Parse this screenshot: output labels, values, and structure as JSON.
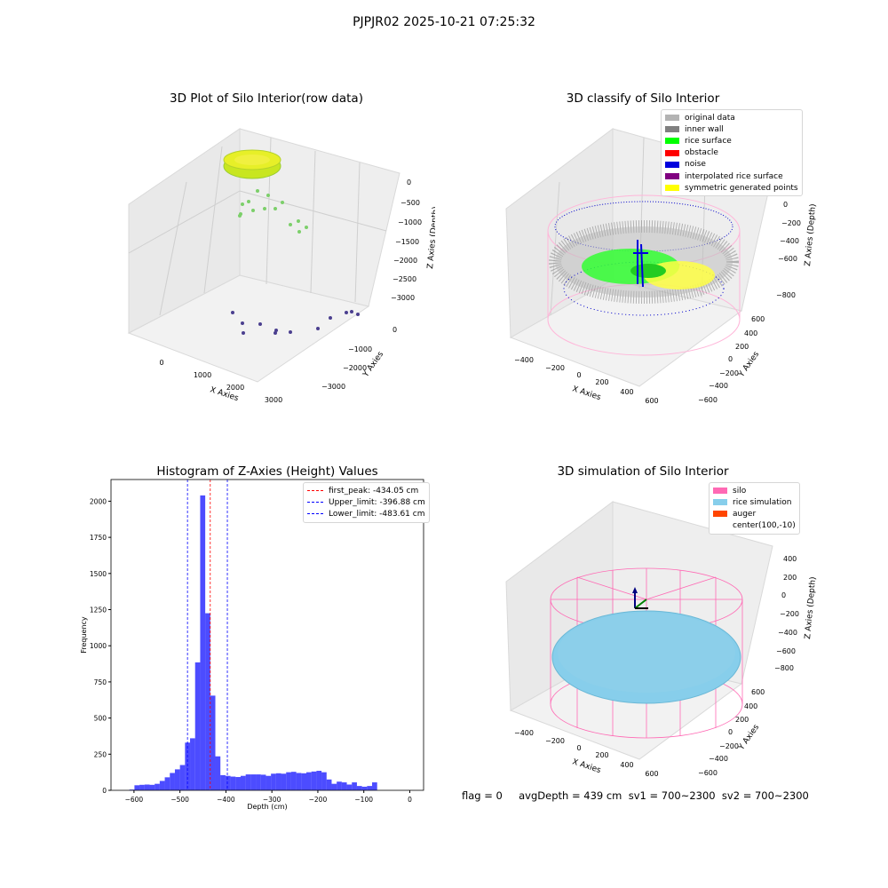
{
  "suptitle": "PJPJR02 2025-10-21 07:25:32",
  "panels": {
    "raw": {
      "title": "3D Plot of Silo Interior(row data)",
      "xlabel": "X Axies",
      "ylabel": "Y Axies",
      "zlabel": "Z Axies (Depth)",
      "xticks": [
        "0",
        "1000",
        "2000",
        "3000"
      ],
      "yticks": [
        "0",
        "−1000",
        "−2000",
        "−3000"
      ],
      "zticks": [
        "0",
        "−500",
        "−1000",
        "−1500",
        "−2000",
        "−2500",
        "−3000"
      ]
    },
    "classify": {
      "title": "3D classify of Silo Interior",
      "xlabel": "X Axies",
      "ylabel": "Y Axies",
      "zlabel": "Z Axies (Depth)",
      "xticks": [
        "−400",
        "−200",
        "0",
        "200",
        "400",
        "600"
      ],
      "yticks": [
        "600",
        "400",
        "200",
        "0",
        "−200",
        "−400",
        "−600"
      ],
      "zticks": [
        "200",
        "0",
        "−200",
        "−400",
        "−600",
        "−800"
      ],
      "legend": [
        {
          "label": "original data",
          "color": "#b3b3b3"
        },
        {
          "label": "inner wall",
          "color": "#808080"
        },
        {
          "label": "rice surface",
          "color": "#00ff00"
        },
        {
          "label": "obstacle",
          "color": "#ff0000"
        },
        {
          "label": "noise",
          "color": "#0000dd"
        },
        {
          "label": "interpolated rice surface",
          "color": "#800080"
        },
        {
          "label": "symmetric generated points",
          "color": "#ffff00"
        }
      ]
    },
    "simulation": {
      "title": "3D simulation of Silo Interior",
      "xlabel": "X Axies",
      "ylabel": "Y Axies",
      "zlabel": "Z Axies (Depth)",
      "xticks": [
        "−400",
        "−200",
        "0",
        "200",
        "400",
        "600"
      ],
      "yticks": [
        "600",
        "400",
        "200",
        "0",
        "−200",
        "−400",
        "−600"
      ],
      "zticks": [
        "400",
        "200",
        "0",
        "−200",
        "−400",
        "−600",
        "−800"
      ],
      "legend": [
        {
          "label": "silo",
          "color": "#ff69b4"
        },
        {
          "label": "rice simulation",
          "color": "#87ceeb"
        },
        {
          "label": "auger",
          "color": "#ff4500"
        },
        {
          "label": "center(100,-10)",
          "color": ""
        }
      ]
    }
  },
  "footer": "flag = 0     avgDepth = 439 cm  sv1 = 700~2300  sv2 = 700~2300",
  "chart_data": {
    "type": "bar",
    "title": "Histogram of Z-Axies (Height) Values",
    "xlabel": "Depth (cm)",
    "ylabel": "Frequency",
    "xlim": [
      -650,
      30
    ],
    "ylim": [
      0,
      2150
    ],
    "xticks": [
      -600,
      -500,
      -400,
      -300,
      -200,
      -100,
      0
    ],
    "yticks": [
      0,
      250,
      500,
      750,
      1000,
      1250,
      1500,
      1750,
      2000
    ],
    "bin_start": -610,
    "bin_width": 11,
    "values": [
      5,
      35,
      38,
      40,
      38,
      45,
      65,
      90,
      120,
      145,
      175,
      330,
      360,
      885,
      2040,
      1225,
      655,
      235,
      105,
      100,
      95,
      92,
      100,
      110,
      110,
      110,
      108,
      100,
      115,
      118,
      115,
      125,
      128,
      120,
      118,
      125,
      130,
      135,
      125,
      75,
      45,
      60,
      55,
      40,
      55,
      30,
      25,
      30,
      55
    ],
    "bar_color": "#0000ff",
    "vlines": [
      {
        "label": "first_peak: -434.05 cm",
        "x": -434.05,
        "color": "#ff0000"
      },
      {
        "label": "Upper_limit: -396.88 cm",
        "x": -396.88,
        "color": "#0000ff"
      },
      {
        "label": "Lower_limit: -483.61 cm",
        "x": -483.61,
        "color": "#0000ff"
      }
    ],
    "legend_position": "top-right"
  }
}
